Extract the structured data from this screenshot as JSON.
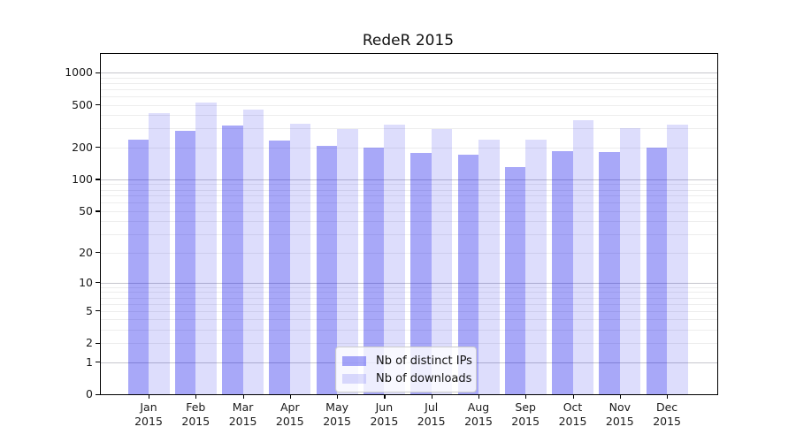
{
  "chart_data": {
    "type": "bar",
    "title": "RedeR 2015",
    "x": {
      "months": [
        "Jan",
        "Feb",
        "Mar",
        "Apr",
        "May",
        "Jun",
        "Jul",
        "Aug",
        "Sep",
        "Oct",
        "Nov",
        "Dec"
      ],
      "year": "2015"
    },
    "series": [
      {
        "name": "Nb of distinct IPs",
        "color": "rgba(0,0,235,0.34)",
        "color_on_white_hex": "#a8a8f8",
        "values": [
          235,
          285,
          320,
          230,
          205,
          200,
          178,
          170,
          131,
          184,
          180,
          200
        ]
      },
      {
        "name": "Nb of downloads",
        "color": "rgba(0,0,235,0.135)",
        "color_on_white_hex": "#dcdcfb",
        "values": [
          420,
          520,
          450,
          335,
          295,
          325,
          295,
          237,
          235,
          362,
          300,
          325
        ]
      }
    ],
    "y_axis": {
      "scale": "log1p",
      "tick_labels": [
        0,
        1,
        2,
        5,
        10,
        20,
        50,
        100,
        200,
        500,
        1000
      ],
      "range": [
        0,
        1490
      ],
      "grid": "both",
      "major_grid_values": [
        1,
        10,
        100,
        1000
      ]
    },
    "legend_position": "lower center"
  },
  "colors": {
    "grid_major": "#c6c6cd",
    "grid_minor": "#ededed",
    "axis": "#000000",
    "legend_border": "#cccccc",
    "text": "#1a1a1a"
  }
}
